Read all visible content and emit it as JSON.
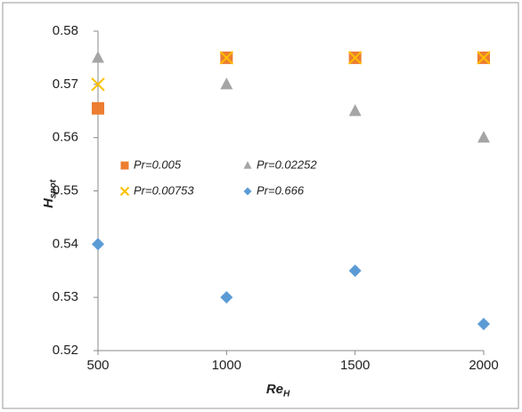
{
  "chart_data": {
    "type": "scatter",
    "x_label": "Re",
    "x_label_sub": "H",
    "y_label": "H",
    "y_label_sub": "spot",
    "xlim": [
      500,
      2000
    ],
    "xticks": [
      500,
      1000,
      1500,
      2000
    ],
    "ylim": [
      0.52,
      0.58
    ],
    "yticks": [
      0.52,
      0.53,
      0.54,
      0.55,
      0.56,
      0.57,
      0.58
    ],
    "grid": false,
    "legend": "inside-upper-left",
    "series": [
      {
        "name": "Pr=0.005",
        "color": "#ed7d31",
        "marker": "square",
        "x": [
          500,
          1000,
          1500,
          2000
        ],
        "values": [
          0.5655,
          0.575,
          0.575,
          0.575
        ]
      },
      {
        "name": "Pr=0.02252",
        "color": "#a5a5a5",
        "marker": "triangle",
        "x": [
          500,
          1000,
          1500,
          2000
        ],
        "values": [
          0.575,
          0.57,
          0.565,
          0.56
        ]
      },
      {
        "name": "Pr=0.00753",
        "color": "#ffc000",
        "marker": "cross",
        "x": [
          500,
          1000,
          1500,
          2000
        ],
        "values": [
          0.57,
          0.575,
          0.575,
          0.575
        ]
      },
      {
        "name": "Pr=0.666",
        "color": "#5b9bd5",
        "marker": "diamond",
        "x": [
          500,
          1000,
          1500,
          2000
        ],
        "values": [
          0.54,
          0.53,
          0.535,
          0.525
        ]
      }
    ]
  }
}
